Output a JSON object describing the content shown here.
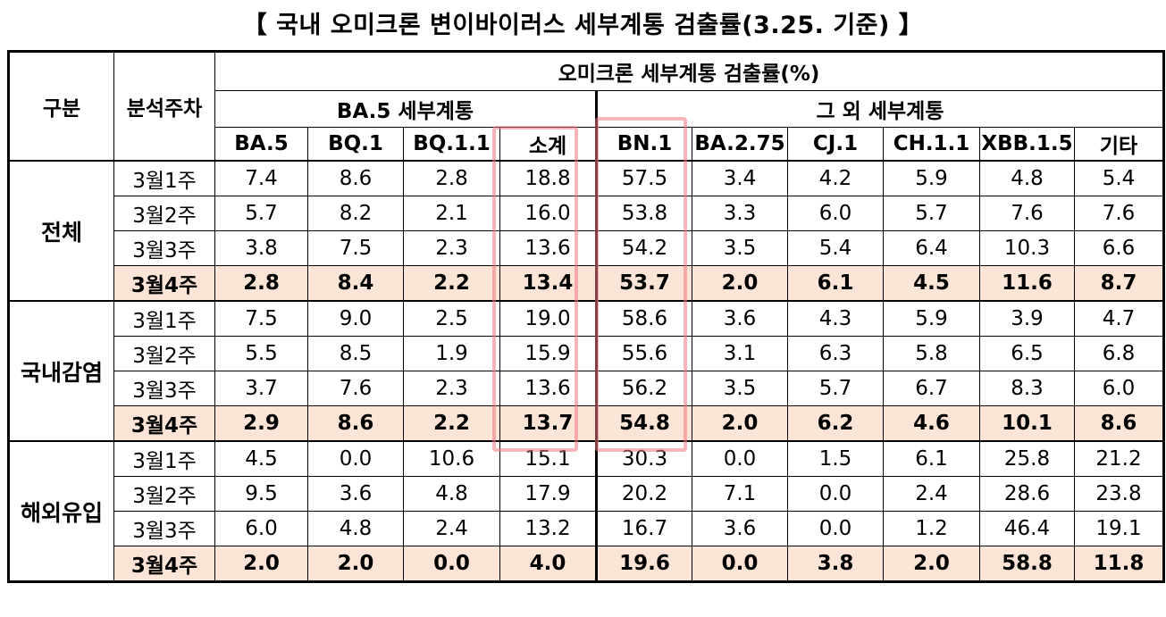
{
  "title": "【 국내 오미크론 변이바이러스 세부계통 검출률(3.25. 기준) 】",
  "headers": {
    "group": "구분",
    "week": "분석주차",
    "main": "오미크론 세부계통 검출률(%)",
    "ba5_group": "BA.5 세부계통",
    "other_group": "그 외 세부계통",
    "columns": [
      "BA.5",
      "BQ.1",
      "BQ.1.1",
      "소계",
      "BN.1",
      "BA.2.75",
      "CJ.1",
      "CH.1.1",
      "XBB.1.5",
      "기타"
    ]
  },
  "groups": [
    {
      "name": "전체",
      "rows": [
        {
          "week": "3월1주",
          "values": [
            "7.4",
            "8.6",
            "2.8",
            "18.8",
            "57.5",
            "3.4",
            "4.2",
            "5.9",
            "4.8",
            "5.4"
          ]
        },
        {
          "week": "3월2주",
          "values": [
            "5.7",
            "8.2",
            "2.1",
            "16.0",
            "53.8",
            "3.3",
            "6.0",
            "5.7",
            "7.6",
            "7.6"
          ]
        },
        {
          "week": "3월3주",
          "values": [
            "3.8",
            "7.5",
            "2.3",
            "13.6",
            "54.2",
            "3.5",
            "5.4",
            "6.4",
            "10.3",
            "6.6"
          ]
        },
        {
          "week": "3월4주",
          "values": [
            "2.8",
            "8.4",
            "2.2",
            "13.4",
            "53.7",
            "2.0",
            "6.1",
            "4.5",
            "11.6",
            "8.7"
          ]
        }
      ]
    },
    {
      "name": "국내감염",
      "rows": [
        {
          "week": "3월1주",
          "values": [
            "7.5",
            "9.0",
            "2.5",
            "19.0",
            "58.6",
            "3.6",
            "4.3",
            "5.9",
            "3.9",
            "4.7"
          ]
        },
        {
          "week": "3월2주",
          "values": [
            "5.5",
            "8.5",
            "1.9",
            "15.9",
            "55.6",
            "3.1",
            "6.3",
            "5.8",
            "6.5",
            "6.8"
          ]
        },
        {
          "week": "3월3주",
          "values": [
            "3.7",
            "7.6",
            "2.3",
            "13.6",
            "56.2",
            "3.5",
            "5.7",
            "6.7",
            "8.3",
            "6.0"
          ]
        },
        {
          "week": "3월4주",
          "values": [
            "2.9",
            "8.6",
            "2.2",
            "13.7",
            "54.8",
            "2.0",
            "6.2",
            "4.6",
            "10.1",
            "8.6"
          ]
        }
      ]
    },
    {
      "name": "해외유입",
      "rows": [
        {
          "week": "3월1주",
          "values": [
            "4.5",
            "0.0",
            "10.6",
            "15.1",
            "30.3",
            "0.0",
            "1.5",
            "6.1",
            "25.8",
            "21.2"
          ]
        },
        {
          "week": "3월2주",
          "values": [
            "9.5",
            "3.6",
            "4.8",
            "17.9",
            "20.2",
            "7.1",
            "0.0",
            "2.4",
            "28.6",
            "23.8"
          ]
        },
        {
          "week": "3월3주",
          "values": [
            "6.0",
            "4.8",
            "2.4",
            "13.2",
            "16.7",
            "3.6",
            "0.0",
            "1.2",
            "46.4",
            "19.1"
          ]
        },
        {
          "week": "3월4주",
          "values": [
            "2.0",
            "2.0",
            "0.0",
            "4.0",
            "19.6",
            "0.0",
            "3.8",
            "2.0",
            "58.8",
            "11.8"
          ]
        }
      ]
    }
  ],
  "colors": {
    "highlight_row": "#fce4d6",
    "annotation_box": "#f07882"
  }
}
